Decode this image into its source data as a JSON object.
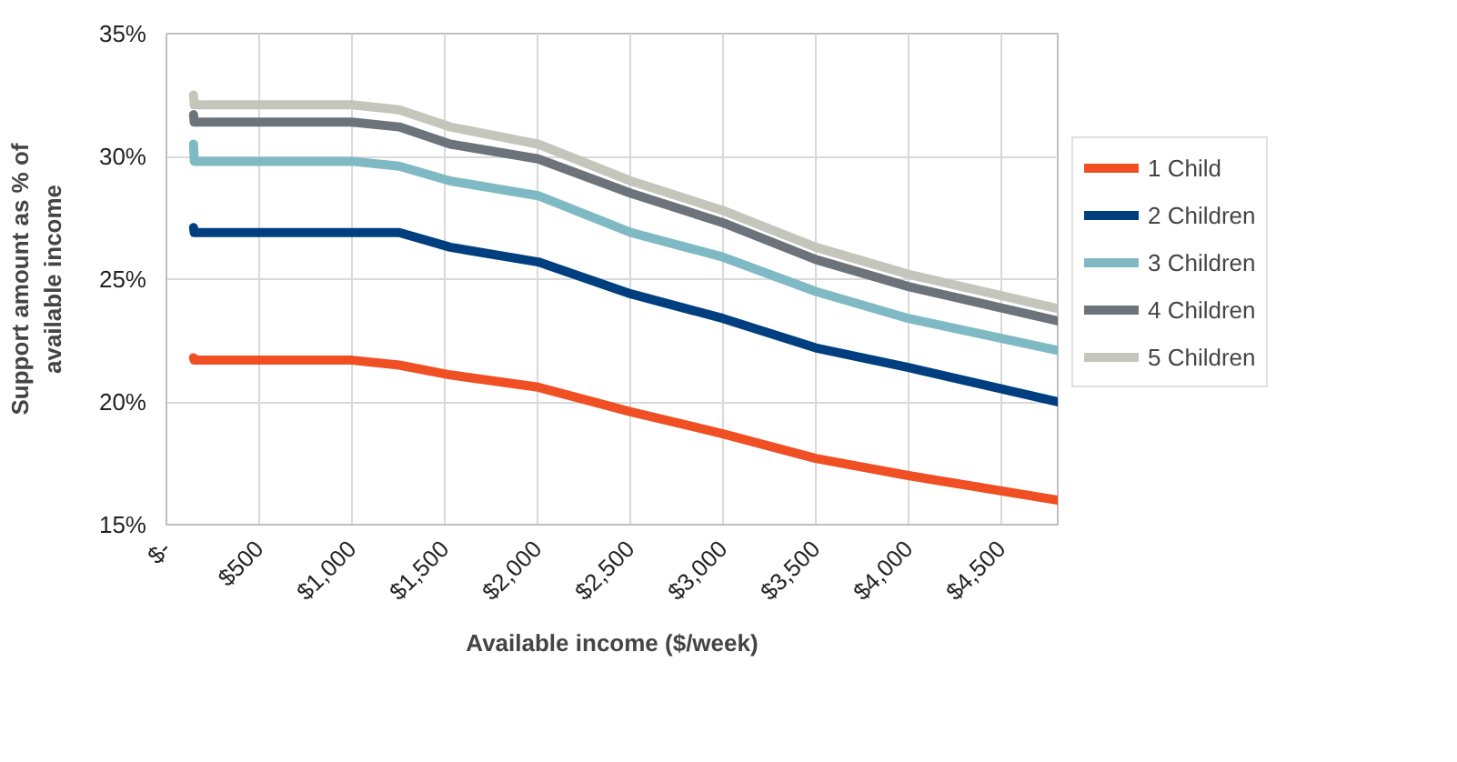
{
  "chart_data": {
    "type": "line",
    "xlabel": "Available income ($/week)",
    "ylabel": "Support amount as % of\navailable income",
    "x": [
      146,
      150,
      1000,
      1255,
      1530,
      2004,
      2503,
      3000,
      3500,
      4000,
      4805
    ],
    "xlim": [
      0,
      4805
    ],
    "xticks": [
      {
        "value": 0,
        "label": "$-"
      },
      {
        "value": 500,
        "label": "$500"
      },
      {
        "value": 1000,
        "label": "$1,000"
      },
      {
        "value": 1500,
        "label": "$1,500"
      },
      {
        "value": 2000,
        "label": "$2,000"
      },
      {
        "value": 2500,
        "label": "$2,500"
      },
      {
        "value": 3000,
        "label": "$3,000"
      },
      {
        "value": 3500,
        "label": "$3,500"
      },
      {
        "value": 4000,
        "label": "$4,000"
      },
      {
        "value": 4500,
        "label": "$4,500"
      }
    ],
    "ylim": [
      15,
      35
    ],
    "yticks": [
      {
        "value": 15,
        "label": "15%"
      },
      {
        "value": 20,
        "label": "20%"
      },
      {
        "value": 25,
        "label": "25%"
      },
      {
        "value": 30,
        "label": "30%"
      },
      {
        "value": 35,
        "label": "35%"
      }
    ],
    "grid": true,
    "legend": "right",
    "marker": "none",
    "line_style": "solid",
    "series": [
      {
        "name": "1 Child",
        "color": "#f04e23",
        "values": [
          21.8,
          21.7,
          21.7,
          21.5,
          21.1,
          20.6,
          19.6,
          18.7,
          17.7,
          17.0,
          16.0
        ]
      },
      {
        "name": "2 Children",
        "color": "#003f7f",
        "values": [
          27.1,
          26.9,
          26.9,
          26.9,
          26.3,
          25.7,
          24.4,
          23.4,
          22.2,
          21.4,
          20.0
        ]
      },
      {
        "name": "3 Children",
        "color": "#7fbac4",
        "values": [
          30.5,
          29.8,
          29.8,
          29.6,
          29.0,
          28.4,
          26.9,
          25.9,
          24.5,
          23.4,
          22.1
        ]
      },
      {
        "name": "4 Children",
        "color": "#6d737b",
        "values": [
          31.7,
          31.4,
          31.4,
          31.2,
          30.5,
          29.9,
          28.5,
          27.3,
          25.8,
          24.7,
          23.3
        ]
      },
      {
        "name": "5 Children",
        "color": "#c4c6bb",
        "values": [
          32.5,
          32.1,
          32.1,
          31.9,
          31.2,
          30.5,
          29.0,
          27.8,
          26.3,
          25.2,
          23.8
        ]
      }
    ]
  }
}
